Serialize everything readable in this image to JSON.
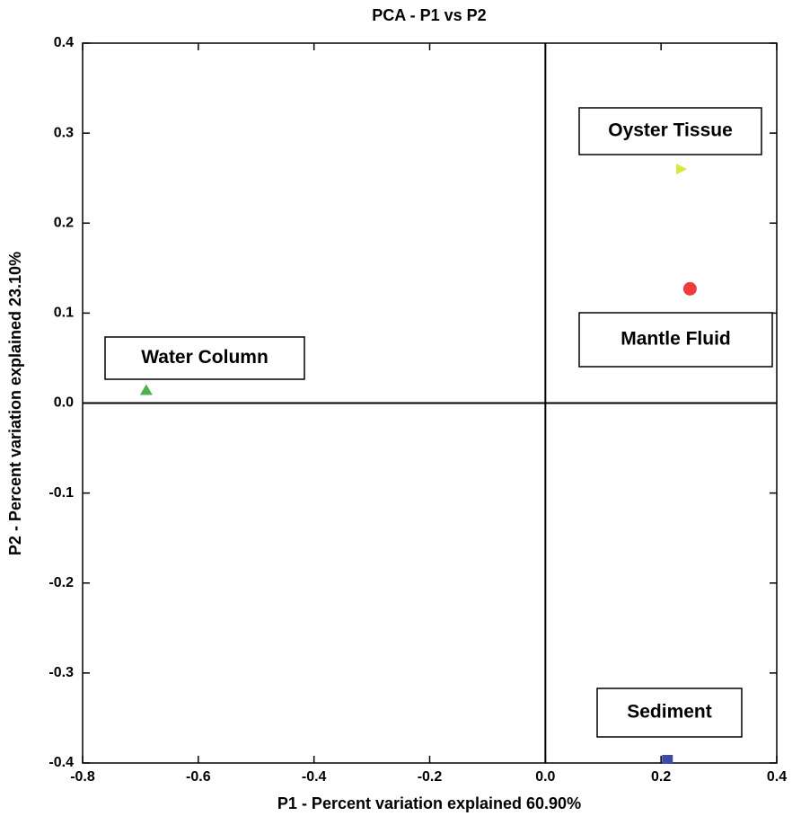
{
  "chart_data": {
    "type": "scatter",
    "title": "PCA - P1 vs P2",
    "x_label": "P1 - Percent variation explained 60.90%",
    "y_label": "P2 - Percent variation explained 23.10%",
    "xlim": [
      -0.8,
      0.4
    ],
    "ylim": [
      -0.4,
      0.4
    ],
    "xticks": [
      -0.8,
      -0.6,
      -0.4,
      -0.2,
      {
        "value": 0,
        "label": "0.0"
      },
      0.2,
      0.4
    ],
    "yticks": [
      -0.4,
      -0.3,
      -0.2,
      -0.1,
      {
        "value": 0,
        "label": "0.0"
      },
      0.1,
      0.2,
      0.3,
      0.4
    ],
    "zero_lines": true,
    "series": [
      {
        "name": "Water Column",
        "color": "#4fb04f",
        "marker": "triangle-up",
        "x": [
          -0.69
        ],
        "values": [
          0.014
        ]
      },
      {
        "name": "Oyster Tissue",
        "color": "#d6e83c",
        "marker": "triangle-right",
        "x": [
          0.234
        ],
        "values": [
          0.26
        ]
      },
      {
        "name": "Mantle Fluid",
        "color": "#ee3b3b",
        "marker": "circle",
        "x": [
          0.25
        ],
        "values": [
          0.127
        ]
      },
      {
        "name": "Sediment",
        "color": "#3d4aa6",
        "marker": "square",
        "x": [
          0.211
        ],
        "values": [
          -0.396
        ]
      }
    ]
  }
}
